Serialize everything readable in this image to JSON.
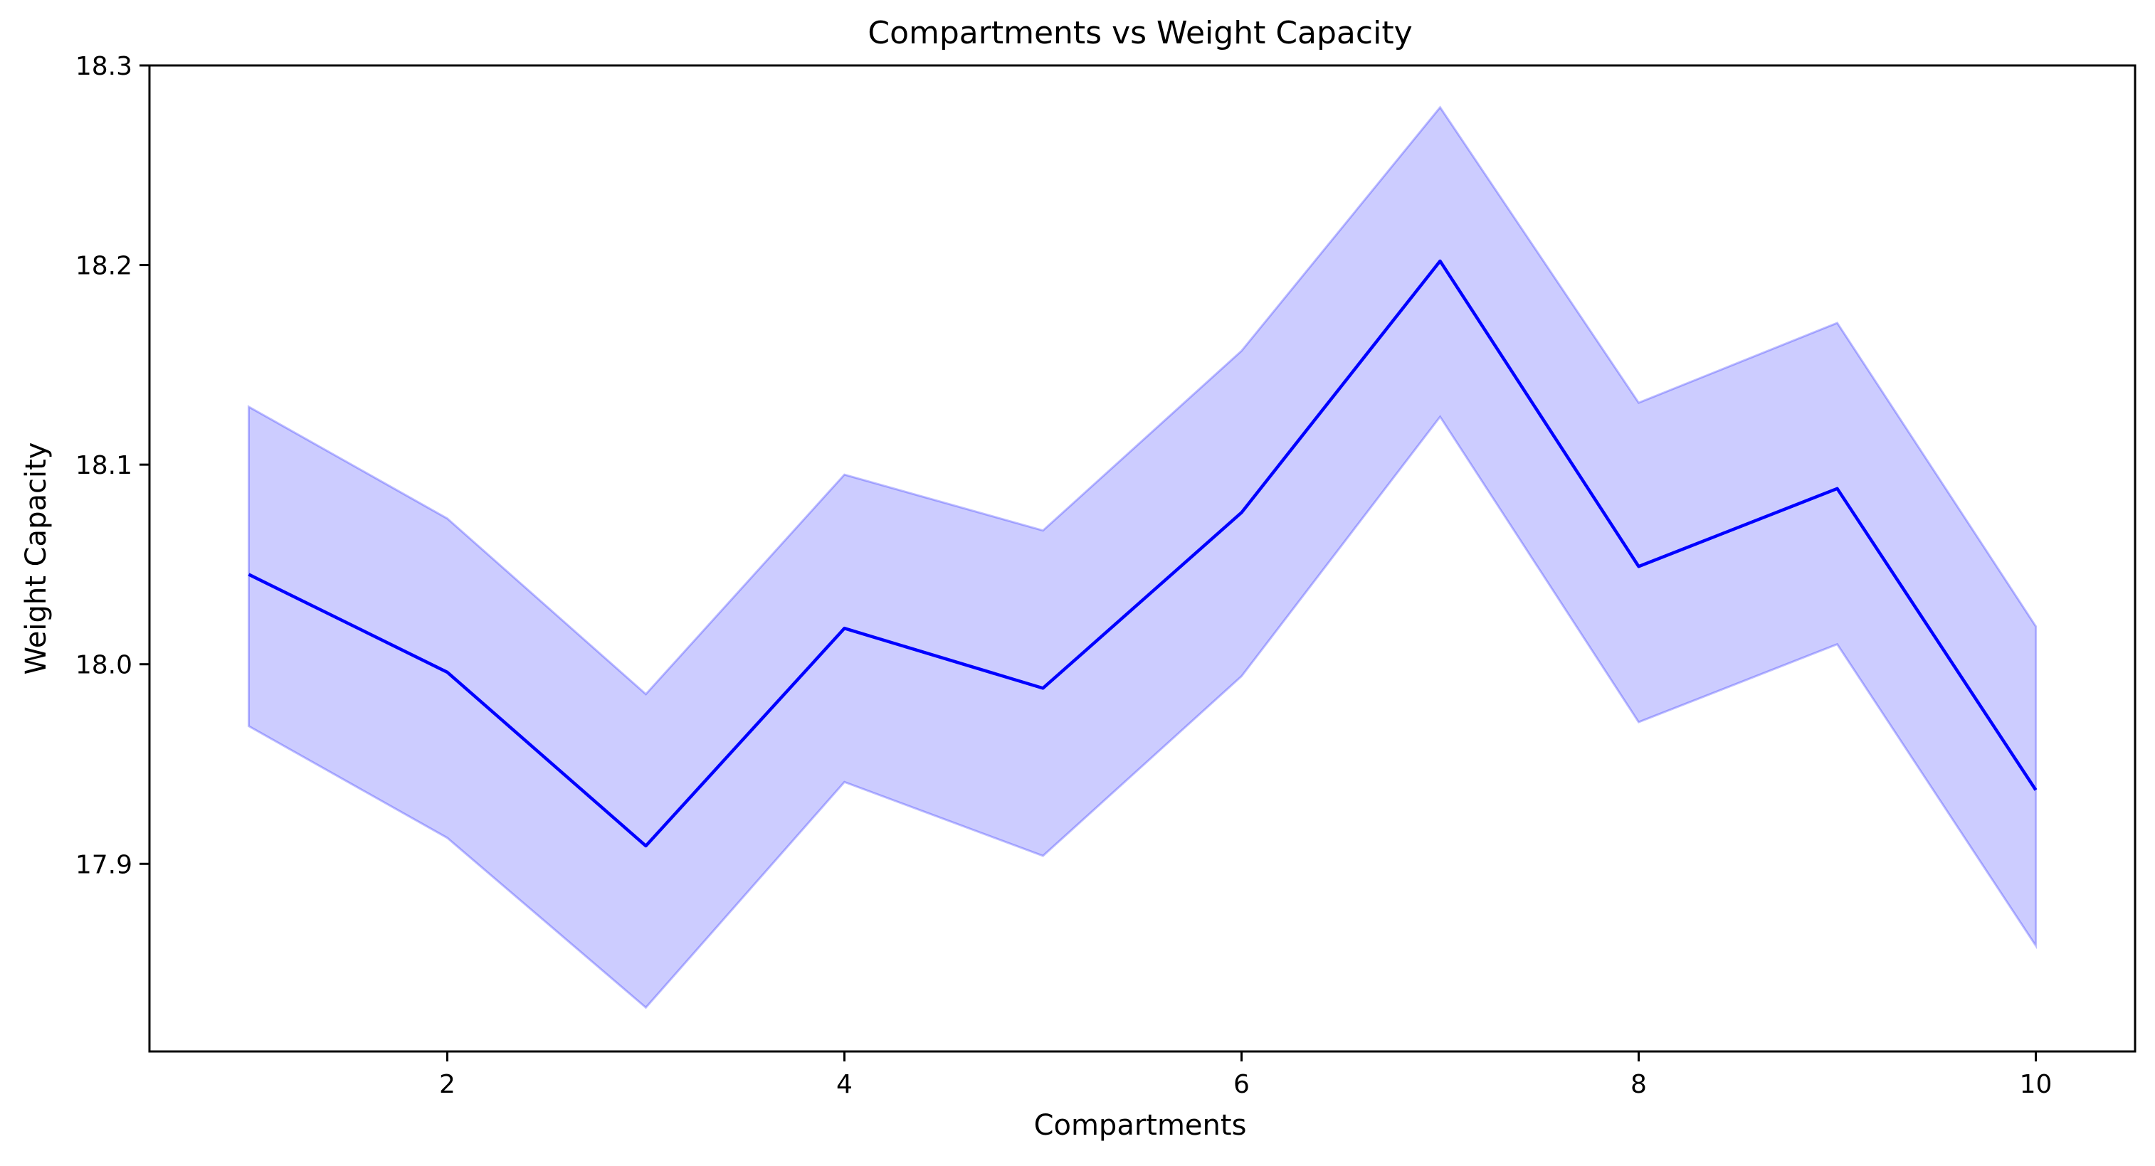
{
  "chart_data": {
    "type": "line",
    "title": "Compartments vs Weight Capacity",
    "xlabel": "Compartments",
    "ylabel": "Weight Capacity",
    "xlim": [
      0.5,
      10.5
    ],
    "ylim": [
      17.806,
      18.3
    ],
    "xticks": [
      2,
      4,
      6,
      8,
      10
    ],
    "xtick_labels": [
      "2",
      "4",
      "6",
      "8",
      "10"
    ],
    "yticks": [
      17.9,
      18.0,
      18.1,
      18.2,
      18.3
    ],
    "ytick_labels": [
      "17.9",
      "18.0",
      "18.1",
      "18.2",
      "18.3"
    ],
    "grid": false,
    "legend": "none",
    "x": [
      1,
      2,
      3,
      4,
      5,
      6,
      7,
      8,
      9,
      10
    ],
    "series": [
      {
        "values": [
          18.045,
          17.996,
          17.909,
          18.018,
          17.988,
          18.076,
          18.202,
          18.049,
          18.088,
          17.937
        ],
        "lower": [
          17.969,
          17.913,
          17.828,
          17.941,
          17.904,
          17.994,
          18.124,
          17.971,
          18.01,
          17.859
        ],
        "upper": [
          18.129,
          18.073,
          17.985,
          18.095,
          18.067,
          18.157,
          18.279,
          18.131,
          18.171,
          18.019
        ],
        "color": "#0000ff",
        "band_color": "#0000ff"
      }
    ]
  }
}
